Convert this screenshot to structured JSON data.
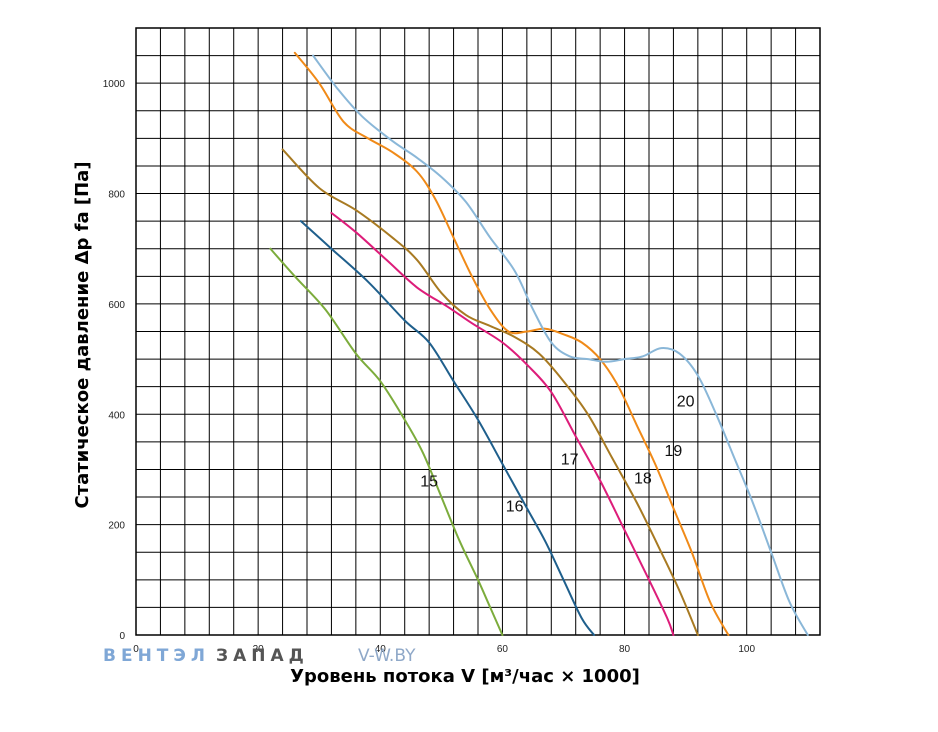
{
  "watermark": {
    "part1": "ВЕНТЭЛ",
    "part2": "ЗАПАД",
    "part3": "V-W.BY",
    "color1": "#7fa7d6",
    "color2": "#555555",
    "color3": "#8fa8c8"
  },
  "chart_data": {
    "type": "line",
    "title": "",
    "xlabel": "Уровень потока V [м³/час × 1000]",
    "ylabel": "Статическое давление Δp fa [Па]",
    "xlim": [
      0,
      112
    ],
    "ylim": [
      0,
      1100
    ],
    "grid": true,
    "x_ticks": [
      0,
      20,
      40,
      60,
      80,
      100
    ],
    "y_ticks": [
      0,
      200,
      400,
      600,
      800,
      1000
    ],
    "series": [
      {
        "name": "15",
        "color": "#7cac3c",
        "points": [
          [
            22,
            700
          ],
          [
            26,
            650
          ],
          [
            31,
            590
          ],
          [
            36,
            510
          ],
          [
            40,
            460
          ],
          [
            44,
            390
          ],
          [
            47,
            330
          ],
          [
            50,
            250
          ],
          [
            53,
            170
          ],
          [
            56,
            100
          ],
          [
            58,
            50
          ],
          [
            60,
            0
          ]
        ]
      },
      {
        "name": "16",
        "color": "#1f5f8c",
        "points": [
          [
            27,
            750
          ],
          [
            32,
            700
          ],
          [
            38,
            640
          ],
          [
            44,
            570
          ],
          [
            48,
            530
          ],
          [
            52,
            460
          ],
          [
            56,
            390
          ],
          [
            60,
            310
          ],
          [
            64,
            230
          ],
          [
            67,
            170
          ],
          [
            70,
            100
          ],
          [
            73,
            30
          ],
          [
            75,
            0
          ]
        ]
      },
      {
        "name": "17",
        "color": "#dd1d7a",
        "points": [
          [
            32,
            765
          ],
          [
            36,
            730
          ],
          [
            41,
            680
          ],
          [
            46,
            630
          ],
          [
            51,
            595
          ],
          [
            55,
            565
          ],
          [
            60,
            530
          ],
          [
            64,
            490
          ],
          [
            68,
            440
          ],
          [
            72,
            360
          ],
          [
            76,
            280
          ],
          [
            80,
            190
          ],
          [
            84,
            100
          ],
          [
            87,
            30
          ],
          [
            88,
            0
          ]
        ]
      },
      {
        "name": "18",
        "color": "#a87a22",
        "points": [
          [
            24,
            880
          ],
          [
            30,
            810
          ],
          [
            36,
            770
          ],
          [
            42,
            720
          ],
          [
            46,
            680
          ],
          [
            50,
            620
          ],
          [
            54,
            580
          ],
          [
            58,
            560
          ],
          [
            62,
            540
          ],
          [
            66,
            510
          ],
          [
            70,
            460
          ],
          [
            74,
            400
          ],
          [
            78,
            320
          ],
          [
            82,
            240
          ],
          [
            86,
            150
          ],
          [
            89,
            80
          ],
          [
            92,
            0
          ]
        ]
      },
      {
        "name": "19",
        "color": "#f08a18",
        "points": [
          [
            26,
            1055
          ],
          [
            30,
            1000
          ],
          [
            34,
            930
          ],
          [
            38,
            900
          ],
          [
            42,
            875
          ],
          [
            46,
            840
          ],
          [
            49,
            790
          ],
          [
            52,
            720
          ],
          [
            55,
            650
          ],
          [
            58,
            590
          ],
          [
            61,
            550
          ],
          [
            64,
            550
          ],
          [
            67,
            555
          ],
          [
            70,
            545
          ],
          [
            73,
            530
          ],
          [
            76,
            500
          ],
          [
            79,
            450
          ],
          [
            82,
            380
          ],
          [
            85,
            310
          ],
          [
            88,
            230
          ],
          [
            91,
            150
          ],
          [
            94,
            60
          ],
          [
            97,
            0
          ]
        ]
      },
      {
        "name": "20",
        "color": "#8ab7d8",
        "points": [
          [
            29,
            1050
          ],
          [
            33,
            990
          ],
          [
            37,
            940
          ],
          [
            42,
            895
          ],
          [
            46,
            865
          ],
          [
            50,
            830
          ],
          [
            54,
            785
          ],
          [
            58,
            720
          ],
          [
            62,
            660
          ],
          [
            65,
            590
          ],
          [
            68,
            530
          ],
          [
            71,
            505
          ],
          [
            74,
            500
          ],
          [
            77,
            495
          ],
          [
            80,
            500
          ],
          [
            83,
            505
          ],
          [
            86,
            520
          ],
          [
            89,
            510
          ],
          [
            92,
            470
          ],
          [
            95,
            400
          ],
          [
            98,
            320
          ],
          [
            101,
            240
          ],
          [
            104,
            150
          ],
          [
            107,
            60
          ],
          [
            110,
            0
          ]
        ]
      }
    ]
  }
}
